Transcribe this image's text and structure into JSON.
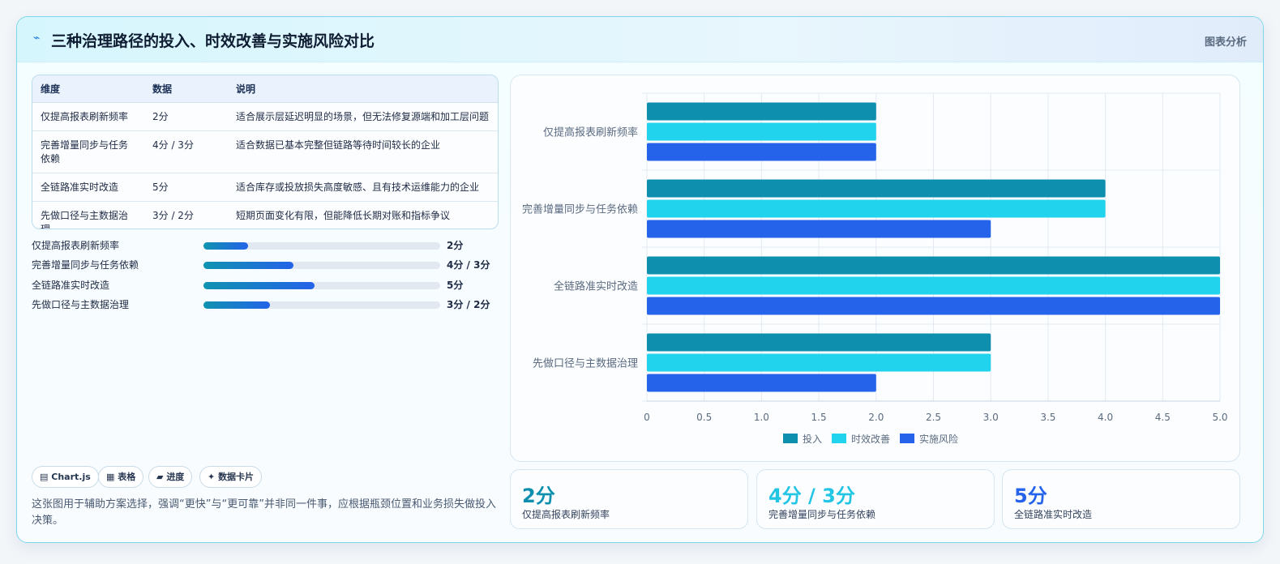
{
  "header": {
    "icon": "lightning-icon",
    "title": "三种治理路径的投入、时效改善与实施风险对比",
    "tag": "图表分析"
  },
  "table": {
    "headers": [
      "维度",
      "数据",
      "说明"
    ],
    "rows": [
      {
        "name": "仅提高报表刷新频率",
        "data": "2分",
        "desc": "适合展示层延迟明显的场景，但无法修复源端和加工层问题"
      },
      {
        "name": "完善增量同步与任务依赖",
        "data": "4分 / 3分",
        "desc": "适合数据已基本完整但链路等待时间较长的企业"
      },
      {
        "name": "全链路准实时改造",
        "data": "5分",
        "desc": "适合库存或投放损失高度敏感、且有技术运维能力的企业"
      },
      {
        "name": "先做口径与主数据治理",
        "data": "3分 / 2分",
        "desc": "短期页面变化有限，但能降低长期对账和指标争议"
      }
    ]
  },
  "progress": [
    {
      "label": "仅提高报表刷新频率",
      "value_text": "2分",
      "fill": 0.19
    },
    {
      "label": "完善增量同步与任务依赖",
      "value_text": "4分 / 3分",
      "fill": 0.38
    },
    {
      "label": "全链路准实时改造",
      "value_text": "5分",
      "fill": 0.47
    },
    {
      "label": "先做口径与主数据治理",
      "value_text": "3分 / 2分",
      "fill": 0.28
    }
  ],
  "chips": [
    {
      "icon": "chart-icon",
      "glyph": "▤",
      "label": "Chart.js"
    },
    {
      "icon": "table-icon",
      "glyph": "▦",
      "label": "表格"
    },
    {
      "icon": "progress-icon",
      "glyph": "▰",
      "label": "进度"
    },
    {
      "icon": "sparkle-icon",
      "glyph": "✦",
      "label": "数据卡片"
    }
  ],
  "note": "这张图用于辅助方案选择，强调“更快”与“更可靠”并非同一件事，应根据瓶颈位置和业务损失做投入决策。",
  "stats": [
    {
      "value": "2分",
      "label": "仅提高报表刷新频率",
      "color": "#0e8fae"
    },
    {
      "value": "4分 / 3分",
      "label": "完善增量同步与任务依赖",
      "color": "#22c5e3"
    },
    {
      "value": "5分",
      "label": "全链路准实时改造",
      "color": "#2563eb"
    }
  ],
  "chart_data": {
    "type": "bar",
    "orientation": "horizontal",
    "categories": [
      "仅提高报表刷新频率",
      "完善增量同步与任务依赖",
      "全链路准实时改造",
      "先做口径与主数据治理"
    ],
    "series": [
      {
        "name": "投入",
        "values": [
          2,
          4,
          5,
          3
        ],
        "color": "#0e8fae"
      },
      {
        "name": "时效改善",
        "values": [
          2,
          4,
          5,
          3
        ],
        "color": "#22d3ee"
      },
      {
        "name": "实施风险",
        "values": [
          2,
          3,
          5,
          2
        ],
        "color": "#2563eb"
      }
    ],
    "xlim": [
      0,
      5
    ],
    "xticks": [
      "0",
      "0.5",
      "1.0",
      "1.5",
      "2.0",
      "2.5",
      "3.0",
      "3.5",
      "4.0",
      "4.5",
      "5.0"
    ],
    "grid": true,
    "legend": "bottom"
  }
}
